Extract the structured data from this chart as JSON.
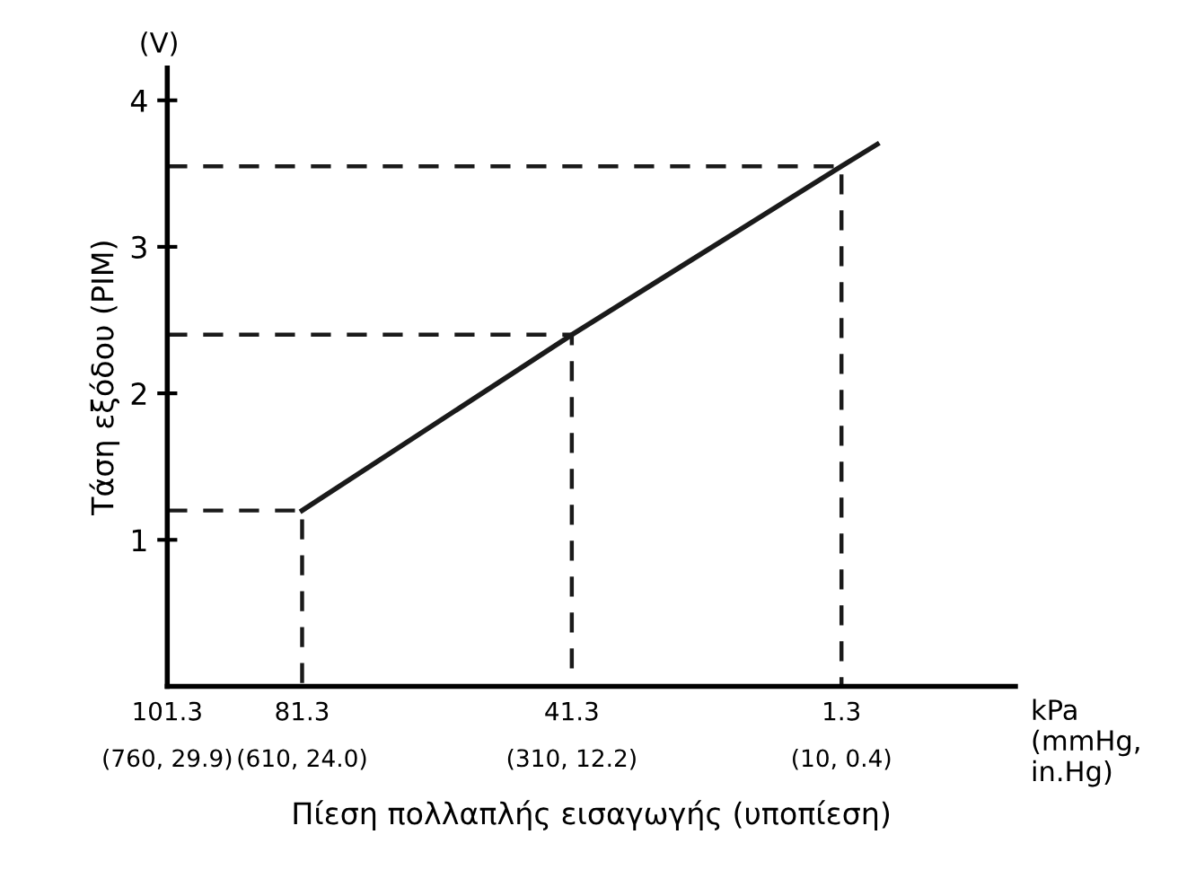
{
  "chart_data": {
    "type": "line",
    "xlabel": "Πίεση πολλαπλής εισαγωγής (υποπίεση)",
    "ylabel": "Τάση εξόδου (PIM)",
    "annotations": [
      {
        "text": "(V)"
      },
      {
        "text": "kPa\n(mmHg,\nin.Hg)"
      },
      {
        "text": "(760, 29.9)"
      },
      {
        "text": "(610, 24.0)"
      },
      {
        "text": "(310, 12.2)"
      },
      {
        "text": "(10, 0.4)"
      }
    ],
    "xlim": [
      101.3,
      -24.5
    ],
    "ylim": [
      0,
      4.22
    ],
    "xticks": [
      101.3,
      81.3,
      41.3,
      1.3
    ],
    "yticks": [
      1,
      2,
      3,
      4
    ],
    "grid": false,
    "legend": false,
    "marker": "none",
    "series": [
      {
        "color": "#1a1a1a",
        "x": [
          81.3,
          41.3,
          1.3,
          -4
        ],
        "values": [
          1.2,
          2.4,
          3.55,
          3.7
        ],
        "line_style": "solid"
      },
      {
        "color": "#1a1a1a",
        "x": [
          101.3,
          81.3,
          81.3
        ],
        "values": [
          1.2,
          1.2,
          0
        ],
        "line_style": "dashed"
      },
      {
        "color": "#1a1a1a",
        "x": [
          101.3,
          41.3,
          41.3
        ],
        "values": [
          2.4,
          2.4,
          0
        ],
        "line_style": "dashed"
      },
      {
        "color": "#1a1a1a",
        "x": [
          101.3,
          1.3,
          1.3
        ],
        "values": [
          3.55,
          3.55,
          0
        ],
        "line_style": "dashed"
      }
    ]
  }
}
